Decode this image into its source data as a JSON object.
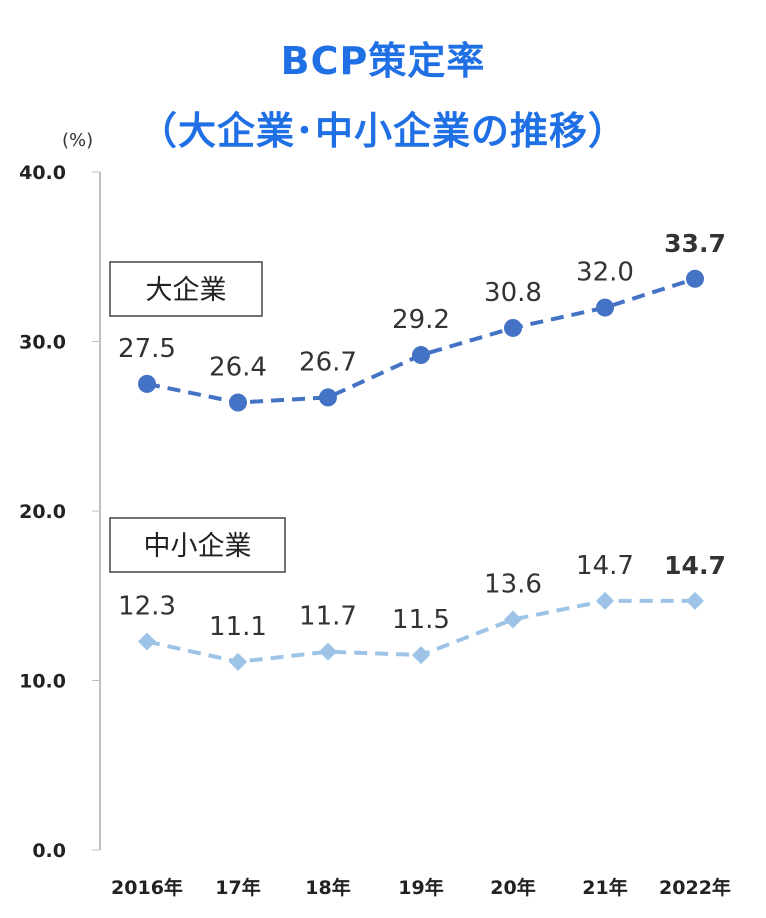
{
  "header": {
    "title_line1": "BCP策定率",
    "title_line2": "（大企業･中小企業の推移）"
  },
  "colors": {
    "title": "#1f6fe5",
    "large": "#4472c4",
    "sme": "#9dc3e6",
    "axis": "#bfbfbf"
  },
  "chart_data": {
    "type": "line",
    "title": "BCP策定率（大企業･中小企業の推移）",
    "unit": "(%)",
    "categories": [
      "2016年",
      "17年",
      "18年",
      "19年",
      "20年",
      "21年",
      "2022年"
    ],
    "ylim": [
      0,
      40
    ],
    "yticks": [
      "0.0",
      "10.0",
      "20.0",
      "30.0",
      "40.0"
    ],
    "grid": false,
    "series": [
      {
        "name": "大企業",
        "values": [
          27.5,
          26.4,
          26.7,
          29.2,
          30.8,
          32.0,
          33.7
        ],
        "labels": [
          "27.5",
          "26.4",
          "26.7",
          "29.2",
          "30.8",
          "32.0",
          "33.7"
        ],
        "marker": "circle",
        "line_style": "dashed"
      },
      {
        "name": "中小企業",
        "values": [
          12.3,
          11.1,
          11.7,
          11.5,
          13.6,
          14.7,
          14.7
        ],
        "labels": [
          "12.3",
          "11.1",
          "11.7",
          "11.5",
          "13.6",
          "14.7",
          "14.7"
        ],
        "marker": "diamond",
        "line_style": "dashed"
      }
    ]
  }
}
